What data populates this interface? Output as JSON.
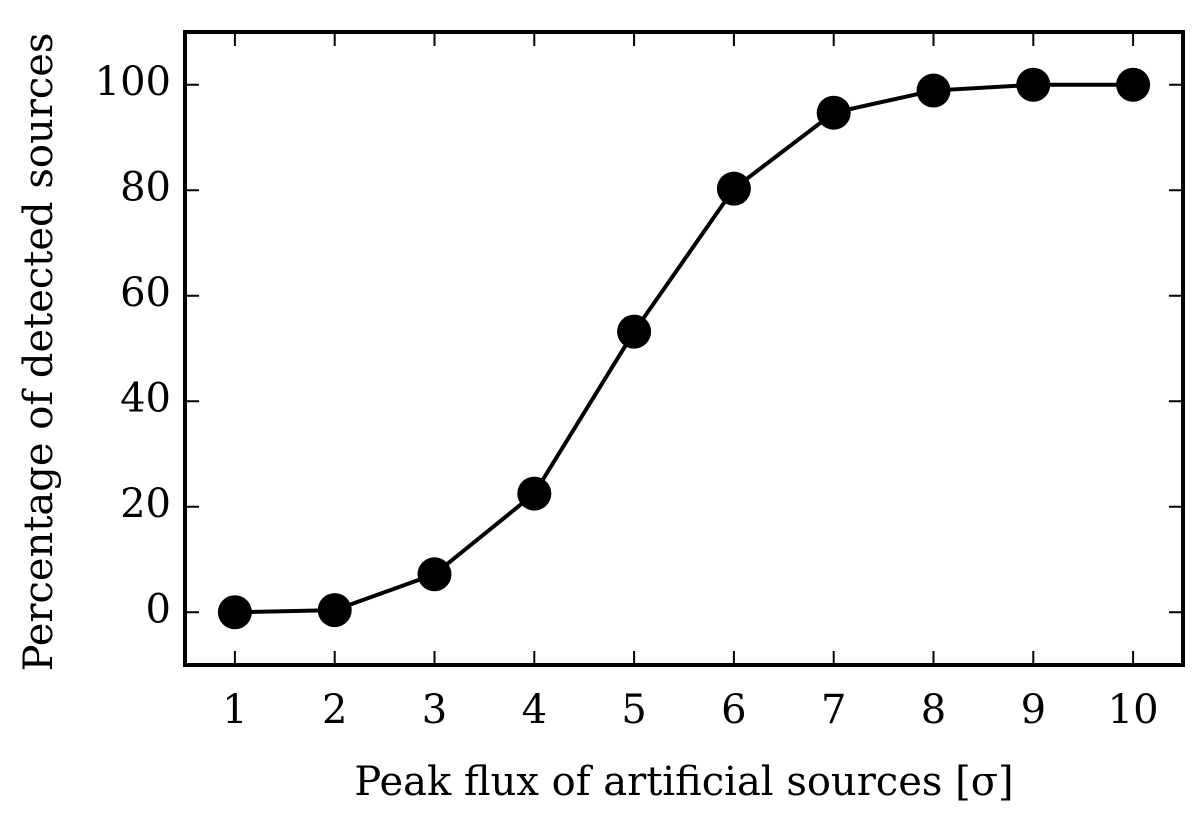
{
  "chart_data": {
    "type": "line",
    "xlabel": "Peak flux of artificial sources [σ]",
    "ylabel": "Percentage of detected sources",
    "x": [
      1,
      2,
      3,
      4,
      5,
      6,
      7,
      8,
      9,
      10
    ],
    "values": [
      0,
      0.4,
      7.2,
      22.5,
      53.2,
      80.3,
      94.7,
      98.9,
      100,
      100
    ],
    "color": "#000000",
    "xlim": [
      0.5,
      10.5
    ],
    "xticks": [
      1,
      2,
      3,
      4,
      5,
      6,
      7,
      8,
      9,
      10
    ],
    "ylim": [
      -10,
      110
    ],
    "yticks": [
      0,
      20,
      40,
      60,
      80,
      100
    ]
  }
}
